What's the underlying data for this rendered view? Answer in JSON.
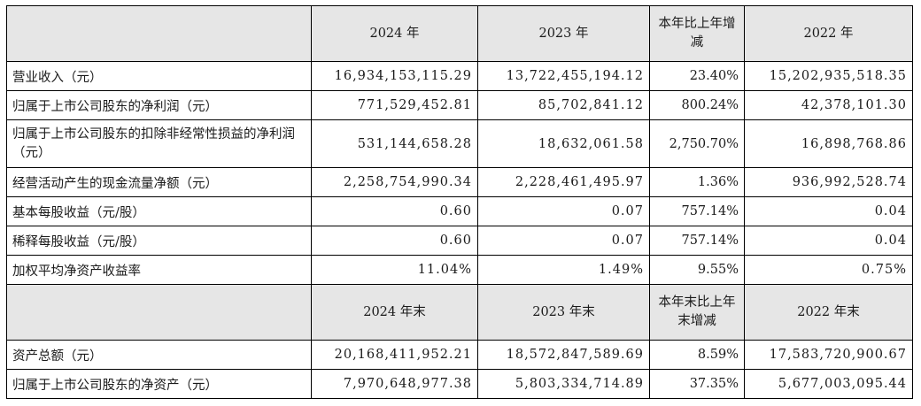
{
  "header1": [
    "2024 年",
    "2023 年",
    "本年比上年增减",
    "2022 年"
  ],
  "rows1": [
    {
      "label": "营业收入（元）",
      "v2024": "16,934,153,115.29",
      "v2023": "13,722,455,194.12",
      "change": "23.40%",
      "v2022": "15,202,935,518.35"
    },
    {
      "label": "归属于上市公司股东的净利润（元）",
      "v2024": "771,529,452.81",
      "v2023": "85,702,841.12",
      "change": "800.24%",
      "v2022": "42,378,101.30"
    },
    {
      "label": "归属于上市公司股东的扣除非经常性损益的净利润（元）",
      "v2024": "531,144,658.28",
      "v2023": "18,632,061.58",
      "change": "2,750.70%",
      "v2022": "16,898,768.86"
    },
    {
      "label": "经营活动产生的现金流量净额（元）",
      "v2024": "2,258,754,990.34",
      "v2023": "2,228,461,495.97",
      "change": "1.36%",
      "v2022": "936,992,528.74"
    },
    {
      "label": "基本每股收益（元/股）",
      "v2024": "0.60",
      "v2023": "0.07",
      "change": "757.14%",
      "v2022": "0.04"
    },
    {
      "label": "稀释每股收益（元/股）",
      "v2024": "0.60",
      "v2023": "0.07",
      "change": "757.14%",
      "v2022": "0.04"
    },
    {
      "label": "加权平均净资产收益率",
      "v2024": "11.04%",
      "v2023": "1.49%",
      "change": "9.55%",
      "v2022": "0.75%"
    }
  ],
  "header2": [
    "2024 年末",
    "2023 年末",
    "本年末比上年末增减",
    "2022 年末"
  ],
  "rows2": [
    {
      "label": "资产总额（元）",
      "v2024": "20,168,411,952.21",
      "v2023": "18,572,847,589.69",
      "change": "8.59%",
      "v2022": "17,583,720,900.67"
    },
    {
      "label": "归属于上市公司股东的净资产（元）",
      "v2024": "7,970,648,977.38",
      "v2023": "5,803,334,714.89",
      "change": "37.35%",
      "v2022": "5,677,003,095.44"
    }
  ]
}
